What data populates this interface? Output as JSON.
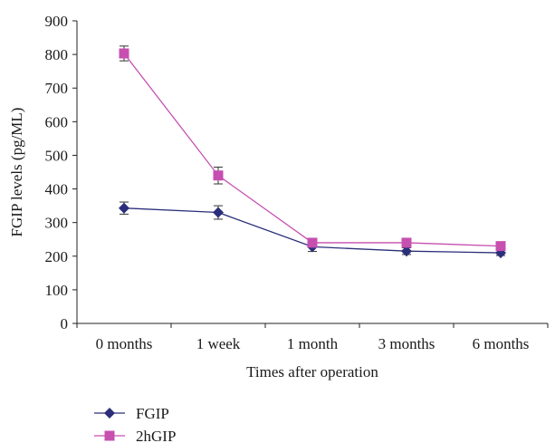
{
  "chart_data": {
    "type": "line",
    "title": "",
    "xlabel": "Times after operation",
    "ylabel": "FGIP levels (pg/ML)",
    "categories": [
      "0 months",
      "1 week",
      "1 month",
      "3 months",
      "6 months"
    ],
    "ylim": [
      0,
      900
    ],
    "yticks": [
      0,
      100,
      200,
      300,
      400,
      500,
      600,
      700,
      800,
      900
    ],
    "grid": false,
    "legend_position": "bottom-left",
    "series": [
      {
        "name": "FGIP",
        "color": "#2b2f7a",
        "marker": "diamond",
        "values": [
          343,
          330,
          228,
          215,
          210
        ],
        "error": [
          18,
          20,
          14,
          10,
          8
        ]
      },
      {
        "name": "2hGIP",
        "color": "#c64fb0",
        "marker": "square",
        "values": [
          803,
          440,
          240,
          240,
          230
        ],
        "error": [
          22,
          25,
          10,
          8,
          6
        ]
      }
    ]
  }
}
